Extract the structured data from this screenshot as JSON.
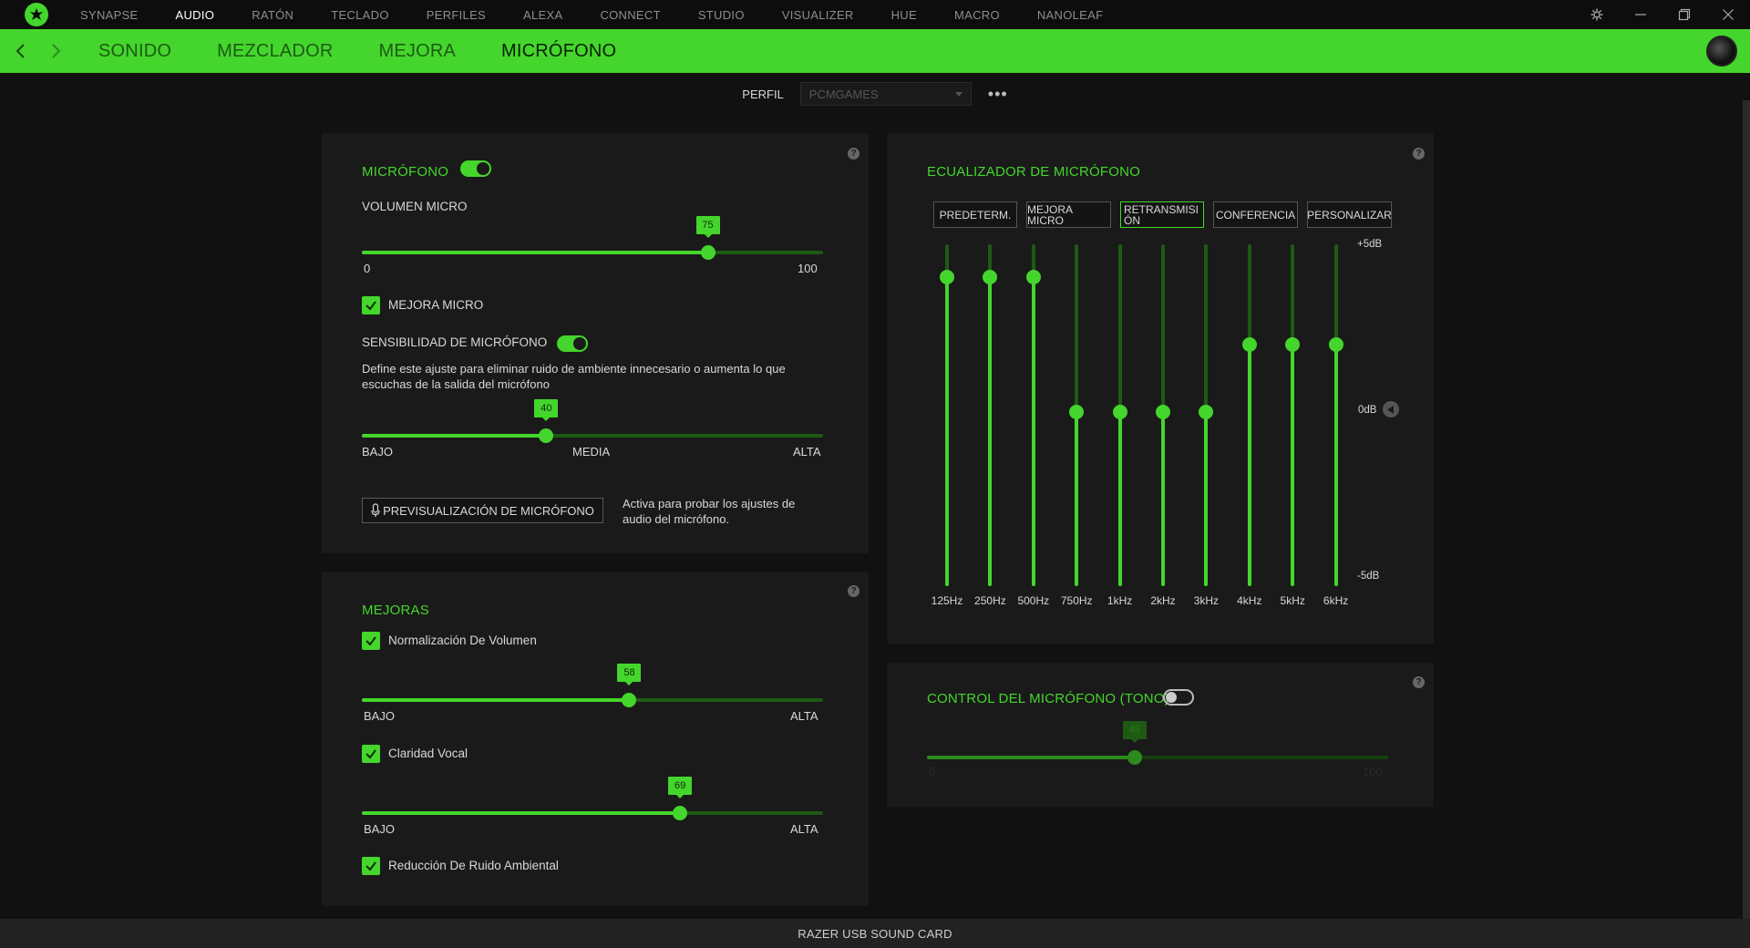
{
  "topnav": {
    "items": [
      "SYNAPSE",
      "AUDIO",
      "RATÓN",
      "TECLADO",
      "PERFILES",
      "ALEXA",
      "CONNECT",
      "STUDIO",
      "VISUALIZER",
      "HUE",
      "MACRO",
      "NANOLEAF"
    ],
    "active_index": 1
  },
  "subnav": {
    "items": [
      "SONIDO",
      "MEZCLADOR",
      "MEJORA",
      "MICRÓFONO"
    ],
    "active_index": 3
  },
  "profile": {
    "label": "PERFIL",
    "value": "PCMGAMES",
    "more": "•••"
  },
  "mic_panel": {
    "title": "MICRÓFONO",
    "toggle_on": true,
    "volume_label": "VOLUMEN MICRO",
    "volume_value": "75",
    "volume_fraction": 0.75,
    "volume_min": "0",
    "volume_max": "100",
    "enhance_label": "MEJORA MICRO",
    "enhance_checked": true,
    "sensitivity_label": "SENSIBILIDAD DE MICRÓFONO",
    "sensitivity_toggle_on": true,
    "sensitivity_desc": "Define este ajuste para eliminar ruido de ambiente innecesario o aumenta lo que escuchas de la salida del micrófono",
    "sensitivity_value": "40",
    "sensitivity_fraction": 0.4,
    "sens_low": "BAJO",
    "sens_mid": "MEDIA",
    "sens_high": "ALTA",
    "preview_button": "PREVISUALIZACIÓN DE MICRÓFONO",
    "preview_desc_1": "Activa para probar los ajustes de",
    "preview_desc_2": "audio del micrófono."
  },
  "enhancements_panel": {
    "title": "MEJORAS",
    "items": [
      {
        "label": "Normalización De Volumen",
        "checked": true,
        "value": "58",
        "fraction": 0.58,
        "low": "BAJO",
        "high": "ALTA"
      },
      {
        "label": "Claridad Vocal",
        "checked": true,
        "value": "69",
        "fraction": 0.69,
        "low": "BAJO",
        "high": "ALTA"
      },
      {
        "label": "Reducción De Ruido Ambiental",
        "checked": true
      }
    ]
  },
  "eq_panel": {
    "title": "ECUALIZADOR DE MICRÓFONO",
    "presets": [
      "PREDETERM.",
      "MEJORA MICRO",
      "RETRANSMISIÓN",
      "CONFERENCIA",
      "PERSONALIZAR"
    ],
    "active_preset": 2,
    "db_top": "+5dB",
    "db_mid": "0dB",
    "db_bottom": "-5dB",
    "bands": [
      {
        "label": "125Hz",
        "db": 4
      },
      {
        "label": "250Hz",
        "db": 4
      },
      {
        "label": "500Hz",
        "db": 4
      },
      {
        "label": "750Hz",
        "db": 0
      },
      {
        "label": "1kHz",
        "db": 0
      },
      {
        "label": "2kHz",
        "db": 0
      },
      {
        "label": "3kHz",
        "db": 0
      },
      {
        "label": "4kHz",
        "db": 2
      },
      {
        "label": "5kHz",
        "db": 2
      },
      {
        "label": "6kHz",
        "db": 2
      }
    ]
  },
  "tone_panel": {
    "title": "CONTROL DEL MICRÓFONO (TONO)",
    "toggle_on": false,
    "value": "45",
    "fraction": 0.45,
    "min": "0",
    "max": "100"
  },
  "status": {
    "device": "RAZER USB SOUND CARD"
  },
  "colors": {
    "accent": "#44d62c",
    "accent_dark": "#1e5a14",
    "panel": "#1a1a1a",
    "background": "#111111"
  },
  "icons": {
    "logo": "razer-logo-icon",
    "settings": "gear-icon",
    "minimize": "minimize-icon",
    "restore": "restore-icon",
    "close": "close-icon",
    "back": "chevron-left-icon",
    "forward": "chevron-right-icon",
    "mic": "microphone-icon",
    "help": "help-icon",
    "reset": "reset-icon"
  }
}
